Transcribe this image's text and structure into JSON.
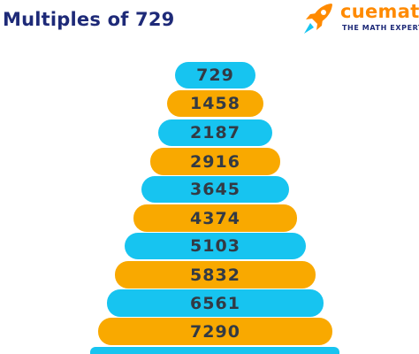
{
  "header": {
    "title": "Multiples of 729"
  },
  "brand": {
    "name": "cuemath",
    "tagline": "THE MATH EXPERT",
    "icon": "rocket-icon"
  },
  "multiples": [
    "729",
    "1458",
    "2187",
    "2916",
    "3645",
    "4374",
    "5103",
    "5832",
    "6561",
    "7290"
  ],
  "colors": {
    "title": "#1e2a78",
    "brand_orange": "#ff8a00",
    "bar_blue": "#17c4f0",
    "bar_orange": "#f9a900",
    "number_text": "#333a44"
  }
}
